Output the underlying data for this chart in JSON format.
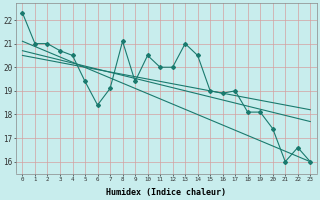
{
  "xlabel": "Humidex (Indice chaleur)",
  "background_color": "#c8eded",
  "grid_color": "#aed4d4",
  "line_color": "#1a7a6e",
  "xlim": [
    -0.5,
    23.5
  ],
  "ylim": [
    15.5,
    22.7
  ],
  "ytick_values": [
    16,
    17,
    18,
    19,
    20,
    21,
    22
  ],
  "x_data": [
    0,
    1,
    2,
    3,
    4,
    5,
    6,
    7,
    8,
    9,
    10,
    11,
    12,
    13,
    14,
    15,
    16,
    17,
    18,
    19,
    20,
    21,
    22,
    23
  ],
  "y_main": [
    22.3,
    21.0,
    21.0,
    20.7,
    20.5,
    19.4,
    18.4,
    19.1,
    21.1,
    19.4,
    20.5,
    20.0,
    20.0,
    21.0,
    20.5,
    19.0,
    18.9,
    19.0,
    18.1,
    18.1,
    17.4,
    16.0,
    16.6,
    16.0
  ],
  "trend_line1": [
    [
      0,
      21.1
    ],
    [
      23,
      16.0
    ]
  ],
  "trend_line2": [
    [
      0,
      20.7
    ],
    [
      23,
      17.7
    ]
  ],
  "trend_line3": [
    [
      0,
      20.5
    ],
    [
      23,
      18.2
    ]
  ]
}
